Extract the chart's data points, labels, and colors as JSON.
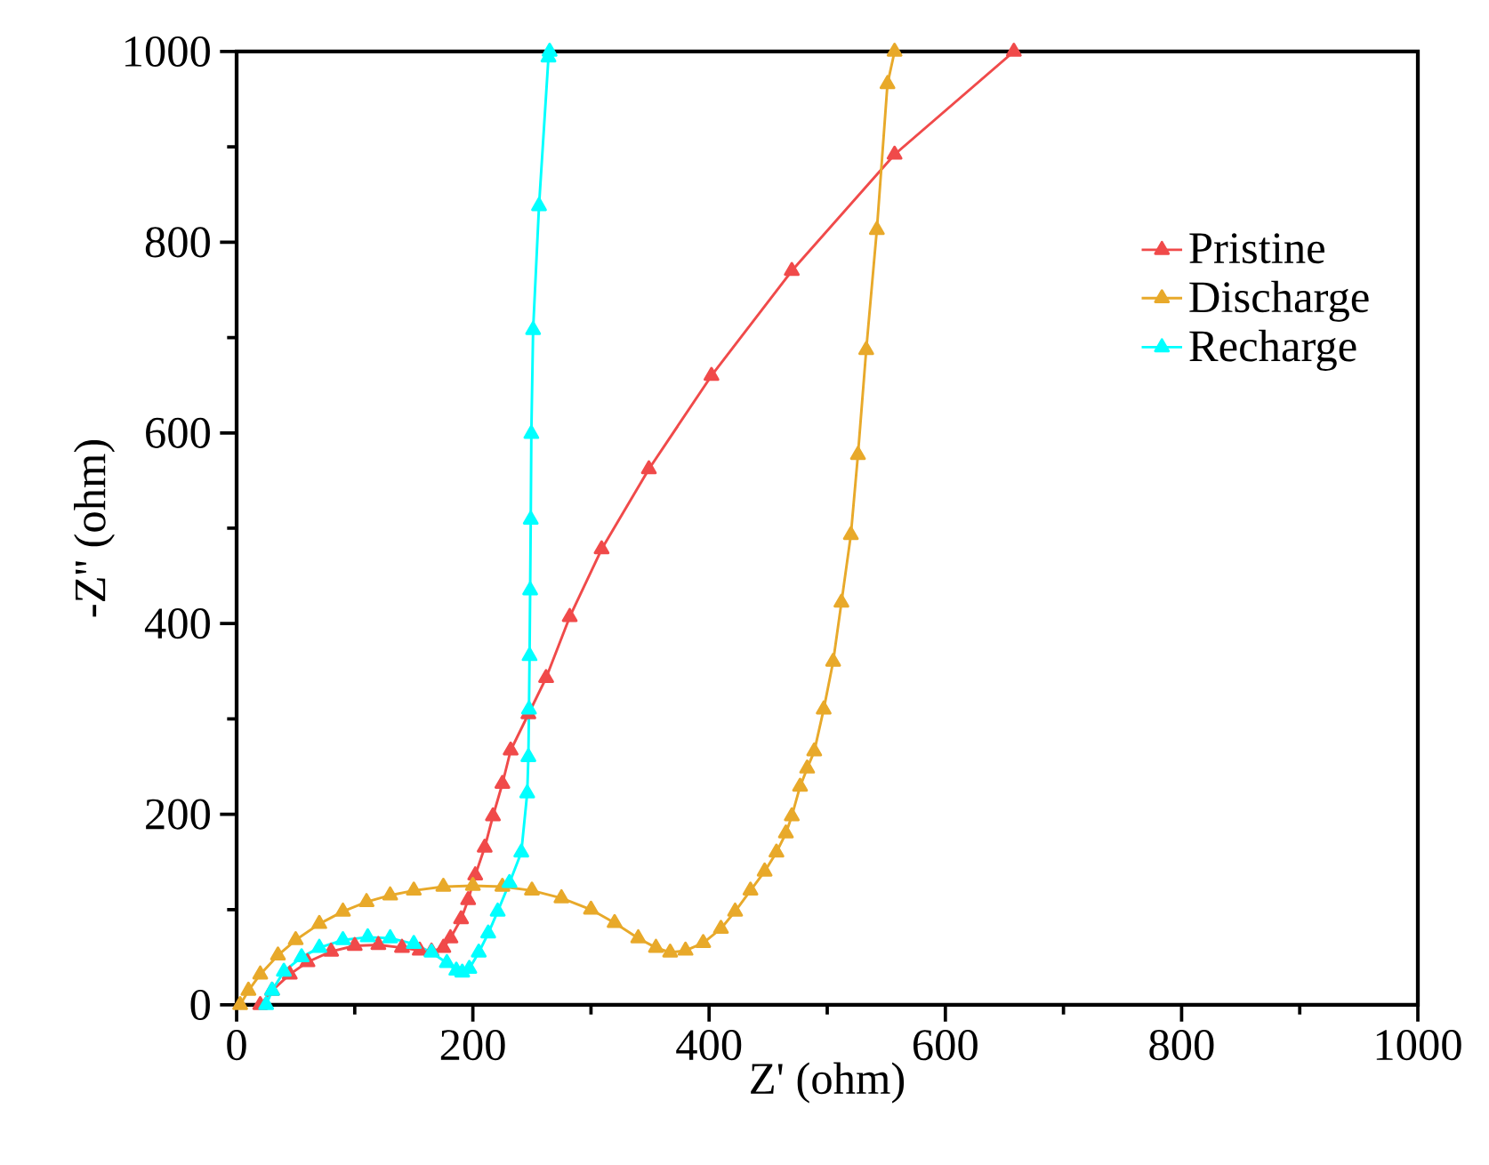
{
  "chart_data": {
    "type": "line",
    "xlabel": "Z' (ohm)",
    "ylabel": "-Z'' (ohm)",
    "xlim": [
      0,
      1000
    ],
    "ylim": [
      0,
      1000
    ],
    "xticks": [
      0,
      200,
      400,
      600,
      800,
      1000
    ],
    "yticks": [
      0,
      200,
      400,
      600,
      800,
      1000
    ],
    "grid": false,
    "legend": "top right",
    "marker": "triangle",
    "line_style": "solid",
    "series": [
      {
        "name": "Pristine",
        "color": "#f04a4a",
        "x": [
          20,
          30,
          45,
          60,
          80,
          100,
          120,
          140,
          155,
          165,
          175,
          181,
          190,
          196,
          202,
          210,
          217,
          225,
          232,
          247,
          262,
          282,
          309,
          349,
          402,
          470,
          557,
          658
        ],
        "values": [
          0,
          15,
          32,
          45,
          56,
          62,
          63,
          60,
          57,
          56,
          60,
          70,
          90,
          110,
          136,
          165,
          198,
          232,
          267,
          305,
          343,
          407,
          478,
          562,
          660,
          770,
          892,
          1000
        ]
      },
      {
        "name": "Discharge",
        "color": "#e8a92a",
        "x": [
          3,
          10,
          20,
          35,
          50,
          70,
          90,
          110,
          130,
          150,
          175,
          200,
          225,
          250,
          275,
          300,
          320,
          340,
          355,
          367,
          380,
          395,
          410,
          422,
          435,
          447,
          457,
          465,
          470,
          477,
          483,
          489,
          497,
          505,
          512,
          520,
          526,
          533,
          542,
          551,
          557
        ],
        "values": [
          0,
          15,
          32,
          52,
          68,
          85,
          98,
          108,
          115,
          120,
          124,
          125,
          124,
          120,
          112,
          100,
          86,
          70,
          60,
          55,
          57,
          65,
          80,
          98,
          120,
          140,
          160,
          180,
          198,
          229,
          248,
          266,
          310,
          360,
          422,
          493,
          577,
          687,
          813,
          966,
          1000
        ]
      },
      {
        "name": "Recharge",
        "color": "#00ffff",
        "x": [
          25,
          30,
          40,
          55,
          70,
          90,
          111,
          130,
          150,
          165,
          178,
          186,
          191,
          197,
          205,
          213,
          221,
          231,
          241,
          246,
          247,
          247.5,
          248,
          248.5,
          249,
          249.5,
          251,
          256,
          264,
          265
        ],
        "values": [
          0,
          15,
          35,
          50,
          60,
          68,
          71,
          70,
          64,
          55,
          44,
          36,
          34,
          38,
          55,
          75,
          98,
          128,
          160,
          222,
          260,
          310,
          366,
          435,
          509,
          599,
          708,
          838,
          994,
          1000
        ]
      }
    ]
  }
}
